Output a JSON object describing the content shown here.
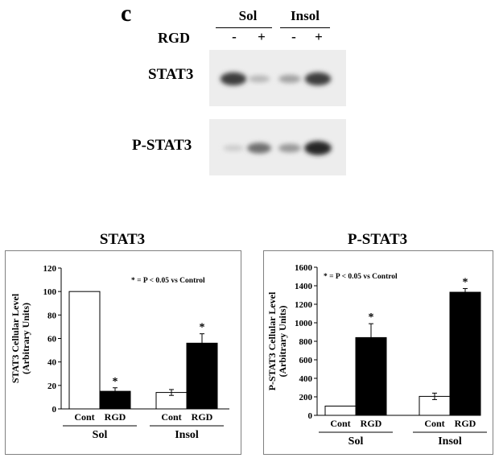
{
  "panel_letter": "c",
  "blot": {
    "groups": [
      "Sol",
      "Insol"
    ],
    "treatment_label": "RGD",
    "lane_marks": [
      "-",
      "+",
      "-",
      "+"
    ],
    "rows": [
      {
        "label": "STAT3",
        "intensities": [
          0.85,
          0.25,
          0.35,
          0.85
        ]
      },
      {
        "label": "P-STAT3",
        "intensities": [
          0.15,
          0.6,
          0.4,
          0.95
        ]
      }
    ]
  },
  "chart_data": [
    {
      "type": "bar",
      "title": "STAT3",
      "ylabel": [
        "STAT3 Cellular Level",
        "(Arbitrary Units)"
      ],
      "ylim": [
        0,
        120
      ],
      "yticks": [
        0,
        20,
        40,
        60,
        80,
        100,
        120
      ],
      "annotation": "* = P < 0.05 vs Control",
      "groups": [
        {
          "name": "Sol",
          "bars": [
            {
              "category": "Cont",
              "value": 100,
              "error": 0,
              "fill": "#ffffff",
              "sig": ""
            },
            {
              "category": "RGD",
              "value": 15,
              "error": 3,
              "fill": "#000000",
              "sig": "*"
            }
          ]
        },
        {
          "name": "Insol",
          "bars": [
            {
              "category": "Cont",
              "value": 14,
              "error": 2.5,
              "fill": "#ffffff",
              "sig": ""
            },
            {
              "category": "RGD",
              "value": 56,
              "error": 8,
              "fill": "#000000",
              "sig": "*"
            }
          ]
        }
      ]
    },
    {
      "type": "bar",
      "title": "P-STAT3",
      "ylabel": [
        "P-STAT3 Cellular Level",
        "(Arbitrary Units)"
      ],
      "ylim": [
        0,
        1600
      ],
      "yticks": [
        0,
        200,
        400,
        600,
        800,
        1000,
        1200,
        1400,
        1600
      ],
      "annotation": "* = P < 0.05 vs Control",
      "groups": [
        {
          "name": "Sol",
          "bars": [
            {
              "category": "Cont",
              "value": 100,
              "error": 0,
              "fill": "#ffffff",
              "sig": ""
            },
            {
              "category": "RGD",
              "value": 840,
              "error": 150,
              "fill": "#000000",
              "sig": "*"
            }
          ]
        },
        {
          "name": "Insol",
          "bars": [
            {
              "category": "Cont",
              "value": 205,
              "error": 35,
              "fill": "#ffffff",
              "sig": ""
            },
            {
              "category": "RGD",
              "value": 1330,
              "error": 40,
              "fill": "#000000",
              "sig": "*"
            }
          ]
        }
      ]
    }
  ]
}
